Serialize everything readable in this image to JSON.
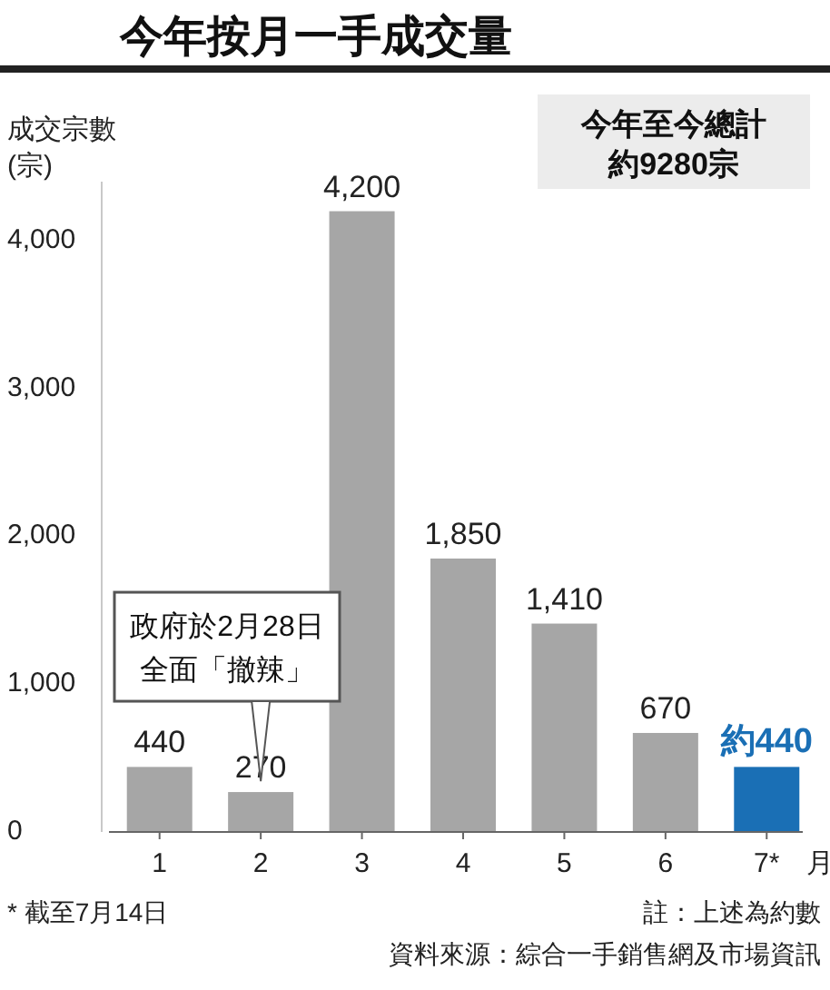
{
  "chart_data": {
    "type": "bar",
    "title": "今年按月一手成交量",
    "ylabel": "成交宗數\n(宗)",
    "xlabel": "月",
    "categories": [
      "1",
      "2",
      "3",
      "4",
      "5",
      "6",
      "7*"
    ],
    "values": [
      440,
      270,
      4200,
      1850,
      1410,
      670,
      440
    ],
    "colors": [
      "#a6a6a6",
      "#a6a6a6",
      "#a6a6a6",
      "#a6a6a6",
      "#a6a6a6",
      "#a6a6a6",
      "#1a6fb5"
    ],
    "value_labels": [
      "440",
      "270",
      "4,200",
      "1,850",
      "1,410",
      "670",
      "約440"
    ],
    "ylim": [
      0,
      4400
    ],
    "yticks": [
      0,
      {
        "value": 1000,
        "label": "1,000"
      },
      {
        "value": 2000,
        "label": "2,000"
      },
      {
        "value": 3000,
        "label": "3,000"
      },
      {
        "value": 4000,
        "label": "4,000"
      }
    ],
    "annotations": [
      "今年至今總計約9280宗",
      {
        "text": "政府於2月28日全面「撤辣」",
        "x": "2",
        "y": 270
      },
      "* 截至7月14日",
      "註：上述為約數",
      "資料來源：綜合一手銷售網及市場資訊"
    ]
  }
}
